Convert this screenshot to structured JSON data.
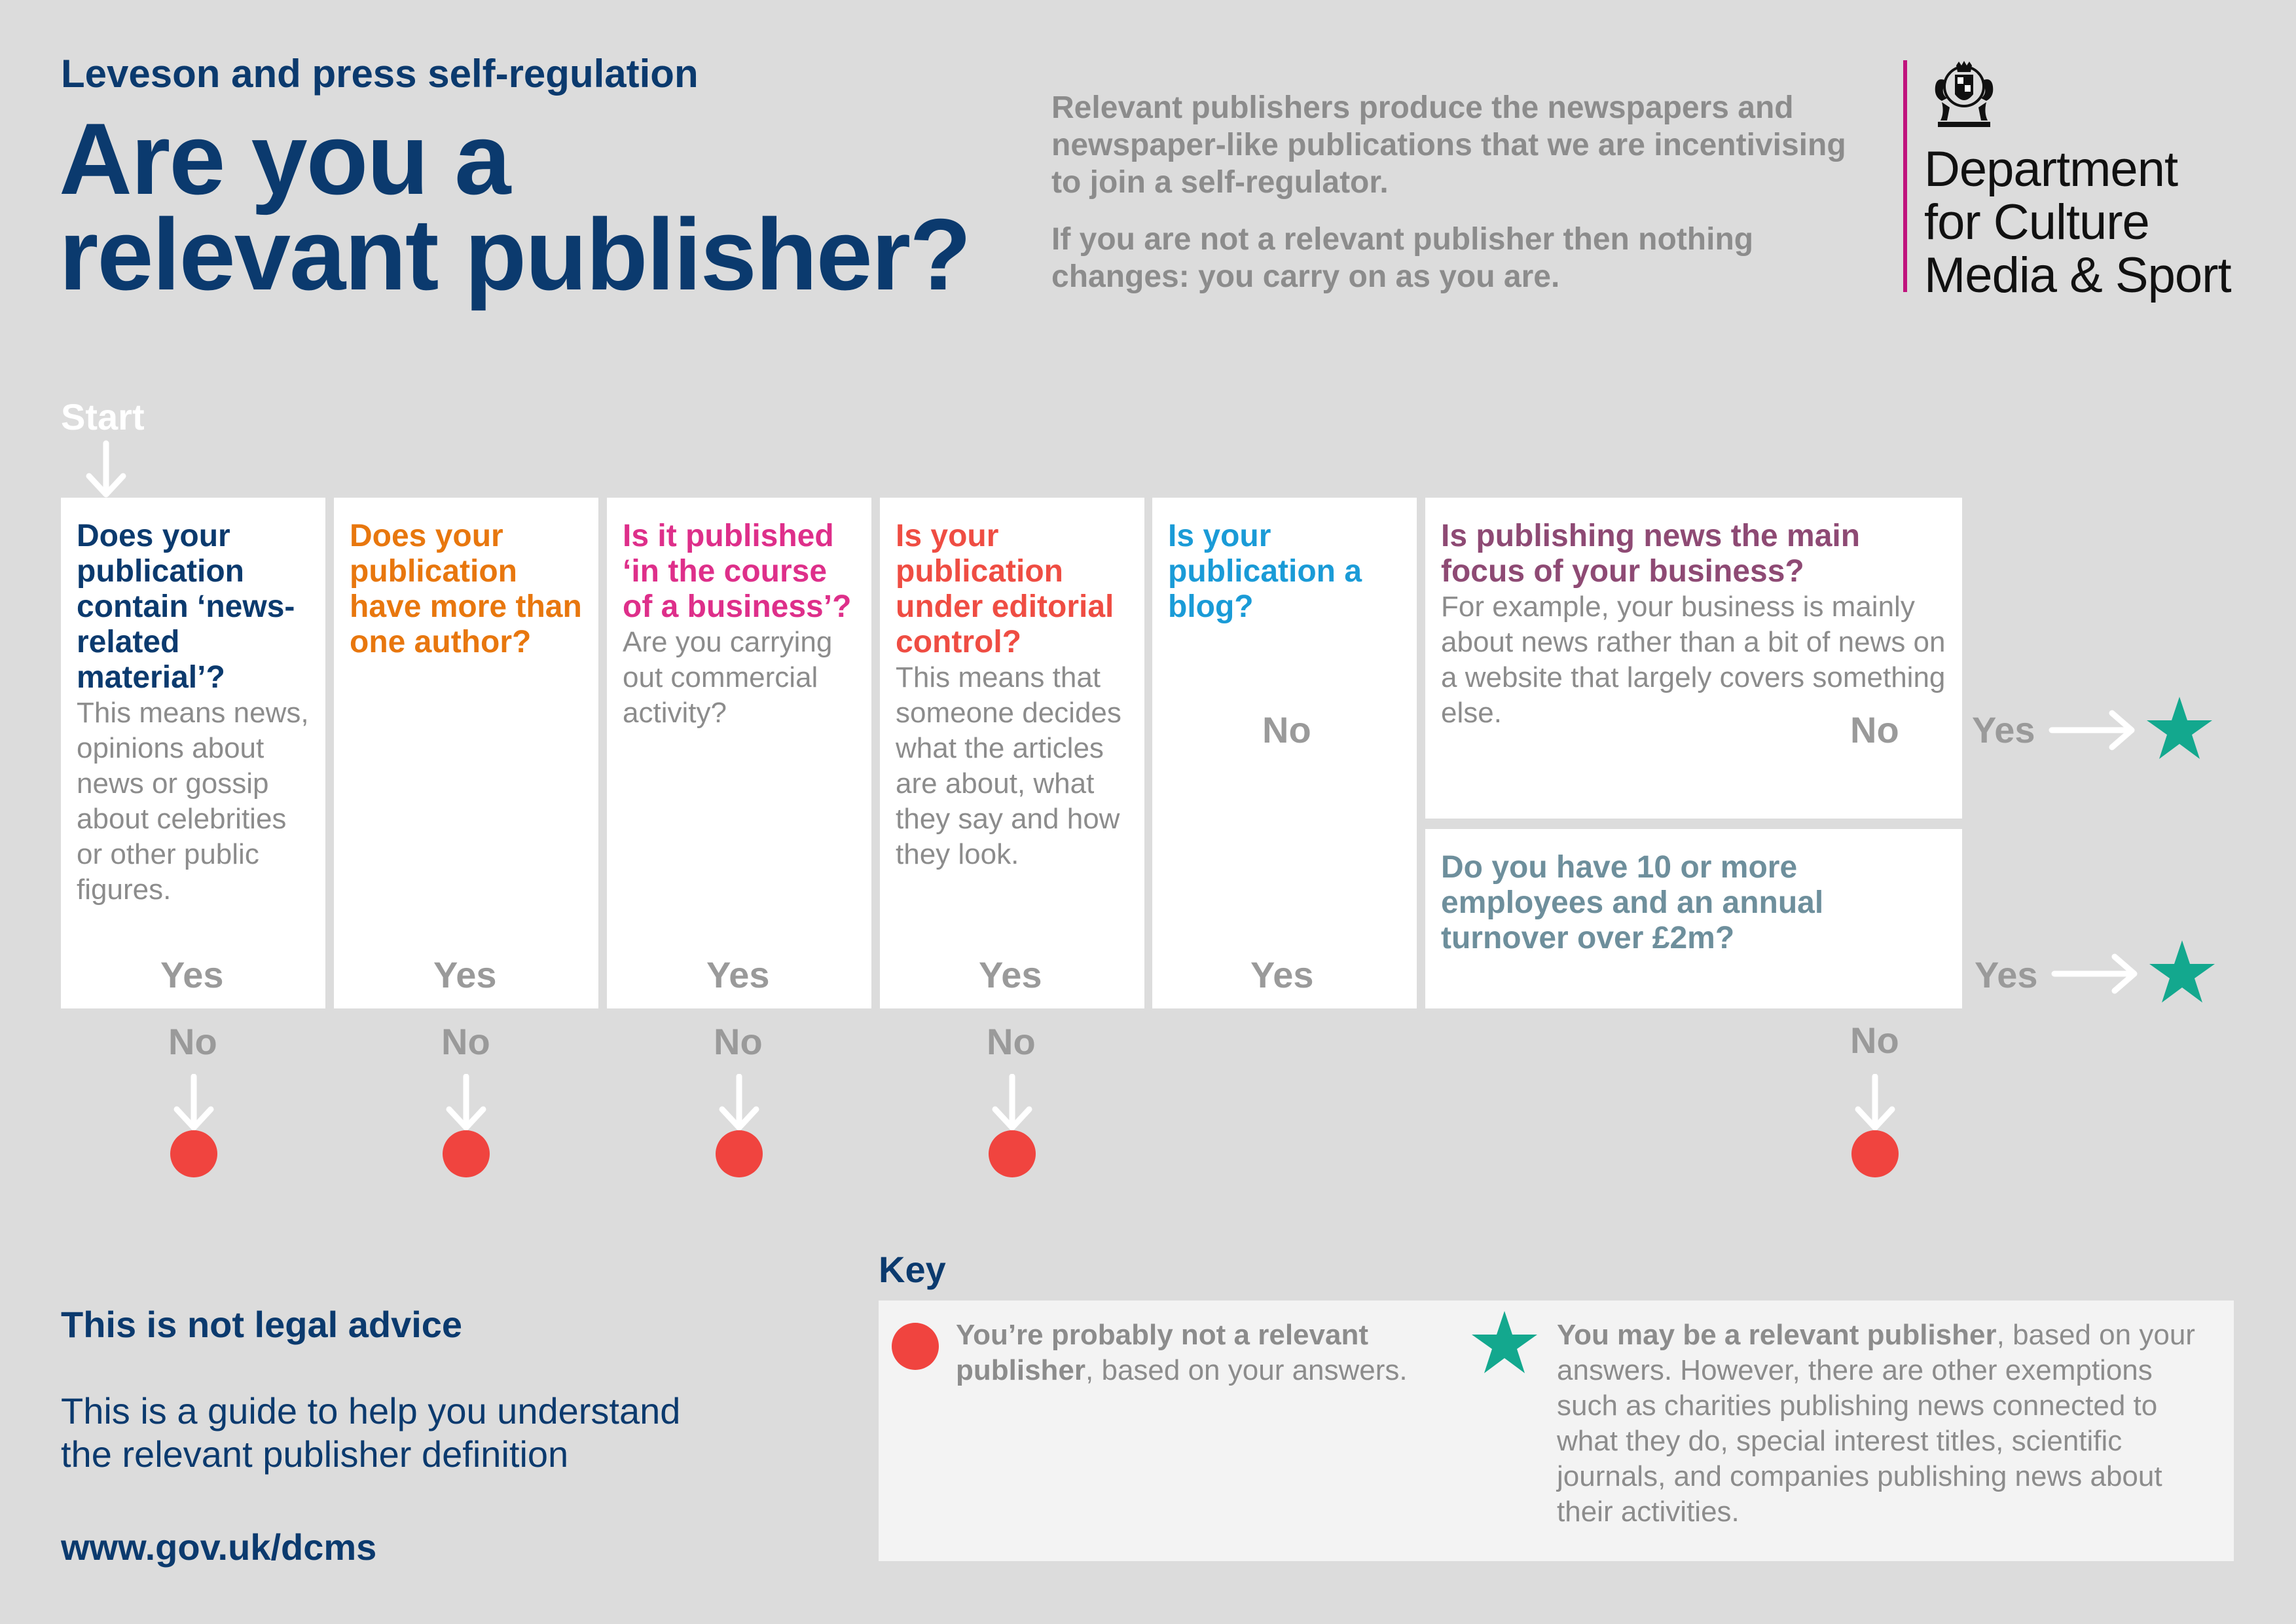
{
  "header": {
    "kicker": "Leveson and press self-regulation",
    "title_line1": "Are you a",
    "title_line2": "relevant publisher?",
    "intro_p1": "Relevant publishers produce the newspapers and newspaper-like publications that we are incentivising to join a self-regulator.",
    "intro_p2": "If you are not a relevant publisher then nothing changes: you carry on as you are.",
    "department_line1": "Department",
    "department_line2": "for Culture",
    "department_line3": "Media & Sport",
    "crest_icon": "royal-coat-of-arms-icon",
    "rule_color": "#c0147d"
  },
  "flow": {
    "start_label": "Start",
    "yes_label": "Yes",
    "no_label": "No",
    "questions": [
      {
        "id": "news-related",
        "question": "Does your publication contain ‘news-related material’?",
        "detail": "This means news, opinions about news or gossip about celebrities or other public figures.",
        "color": "#0b3a6e"
      },
      {
        "id": "more-than-one-author",
        "question": "Does your publication have more than one author?",
        "detail": "",
        "color": "#e8770e"
      },
      {
        "id": "course-of-business",
        "question": "Is it published ‘in the course of a business’?",
        "detail": "Are you carrying out commercial activity?",
        "color": "#de2f8a"
      },
      {
        "id": "editorial-control",
        "question": "Is your publication under editorial control?",
        "detail": "This means that someone decides what the articles are about, what they say and how they look.",
        "color": "#ef4d43"
      },
      {
        "id": "blog",
        "question": "Is your publication a blog?",
        "detail": "",
        "color": "#1a9bd7"
      },
      {
        "id": "news-main-focus",
        "question": "Is publishing news the main focus of your business?",
        "detail": "For example, your business is mainly about news rather than a bit of news on a website that largely covers something else.",
        "color": "#8e4a74"
      },
      {
        "id": "employees-turnover",
        "question": "Do you have 10 or more employees and an annual turnover over £2m?",
        "detail": "",
        "color": "#6e8f9c"
      }
    ]
  },
  "key": {
    "title": "Key",
    "not_relevant_bold": "You’re probably not a relevant publisher",
    "not_relevant_rest": ", based on your answers.",
    "relevant_bold": "You may be a relevant publisher",
    "relevant_rest": ", based on your answers. However, there are other exemptions such as charities publishing news connected to what they do, special interest titles, scientific journals, and companies publishing news about their activities.",
    "not_relevant_color": "#f0443f",
    "relevant_color": "#13a88e"
  },
  "footer": {
    "disclaimer_title": "This is not legal advice",
    "disclaimer_text": "This is a guide to help you understand the relevant publisher definition",
    "url": "www.gov.uk/dcms"
  }
}
